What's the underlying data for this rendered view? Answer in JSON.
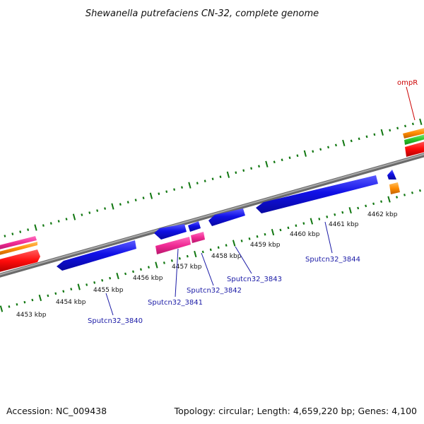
{
  "header": {
    "title": "Shewanella putrefaciens CN-32, complete genome"
  },
  "footer": {
    "accession": "Accession: NC_009438",
    "topology": "Topology: circular; Length: 4,659,220 bp; Genes: 4,100"
  },
  "kbp_labels": [
    "4453 kbp",
    "4454 kbp",
    "4455 kbp",
    "4456 kbp",
    "4457 kbp",
    "4458 kbp",
    "4459 kbp",
    "4460 kbp",
    "4461 kbp",
    "4462 kbp"
  ],
  "gene_labels": [
    "Sputcn32_3840",
    "Sputcn32_3841",
    "Sputcn32_3842",
    "Sputcn32_3843",
    "Sputcn32_3844",
    "ompR"
  ],
  "colors": {
    "backbone": "#8c8c8c",
    "cds": "#1414e0",
    "pink": "#f0359a",
    "red": "#ff1010",
    "orange": "#ff8c00",
    "green": "#33cc33",
    "tick": "#117711"
  }
}
